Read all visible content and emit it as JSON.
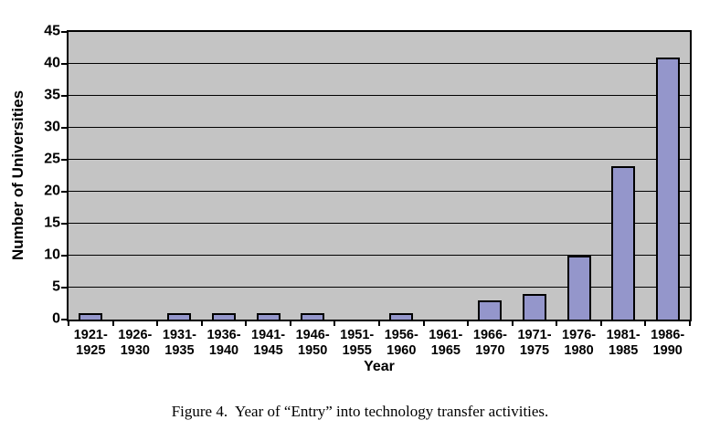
{
  "figure": {
    "caption": "Figure 4.  Year of “Entry” into technology transfer activities."
  },
  "chart_data": {
    "type": "bar",
    "title": "",
    "xlabel": "Year",
    "ylabel": "Number of Universities",
    "categories": [
      "1921-1925",
      "1926-1930",
      "1931-1935",
      "1936-1940",
      "1941-1945",
      "1946-1950",
      "1951-1955",
      "1956-1960",
      "1961-1965",
      "1966-1970",
      "1971-1975",
      "1976-1980",
      "1981-1985",
      "1986-1990"
    ],
    "values": [
      1,
      0,
      1,
      1,
      1,
      1,
      0,
      1,
      0,
      3,
      4,
      10,
      24,
      41
    ],
    "ylim": [
      0,
      45
    ],
    "yticks": [
      0,
      5,
      10,
      15,
      20,
      25,
      30,
      35,
      40,
      45
    ],
    "grid": true,
    "legend": "none",
    "colors": {
      "bar_fill": "#9496CB",
      "bar_border": "#000000",
      "plot_background": "#C4C4C4",
      "axis": "#000000",
      "page_background": "#FFFFFF"
    }
  }
}
